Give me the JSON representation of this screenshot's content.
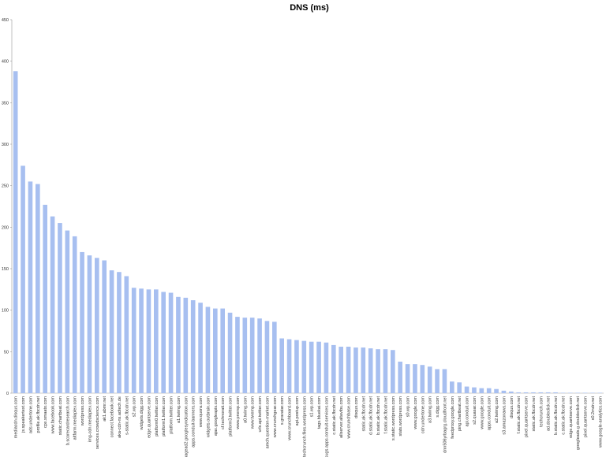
{
  "chart_data": {
    "type": "bar",
    "title": "DNS (ms)",
    "categories": [
      "mediacdn.disqus.com",
      "js.speakertext.com",
      "ads.undertone.com",
      "profile.ak.fbcdn.net",
      "cpx.smaato.com",
      "www.facebook.com",
      "static.chartbeat.com",
      "b.scorecardresearch.com",
      "altfarm.mediaplex.com",
      "wordpress.com",
      "img-cdn.mediaplex.com",
      "services.crowdscience.com",
      "ak1.abmr.net",
      "connect.facebook.net",
      "aka-cdn-ns.adtech.de",
      "s-static.ak.fbcdn.net",
      "s2.wp.com",
      "widgets.digg.com",
      "edge.quantserve.com",
      "platform0.twitter.com",
      "platform1.twitter.com",
      "platform.twitter.com",
      "a1.twimg.com",
      "pagead2.googlesyndication.com",
      "apps.conduit-banners.com",
      "www.quora.com",
      "widgets.outbrain.com",
      "ajax.googleapis.com",
      "cf.technorati.com",
      "platform3.twitter.com",
      "www.pnxrsp.com",
      "a0.twimg.com",
      "www.twemp.com",
      "urls.api.twitter.com",
      "amch.question-market.com",
      "www.crunchgear.com",
      "s.gravatar.com",
      "www.crunchboard.com",
      "api.postup.com",
      "techcrunch.files.wordpress.com",
      "s1.wp.com",
      "tags.bluekai.com",
      "sugs.apps.conduit-services.com",
      "c.static.ak.fbcdn.net",
      "allserver.altavibu.com",
      "www.crunchbase.com",
      "disqus.com",
      "static.ak.fbcdn.net",
      "d.static.ak.fbcdn.net",
      "b.static.ak.fbcdn.net",
      "f.static.ak.fbcdn.net",
      "s.static.wordpress.com",
      "stats.wordpress.com",
      "s0.wp.com",
      "www.google.com",
      "cdn.undertone.com",
      "a3.twimg.com",
      "s.digg.com",
      "dnn506yrbagrg.cloudfront.net",
      "feedproxy.google.com",
      "ping.chartbeat.net",
      "api.conduit.com",
      "s2.quasar.com",
      "www.google.com",
      "apps.conduit.com",
      "a2.twimg.com",
      "s3.amazonaws.com",
      "disqus.com",
      "f.static.ak.fbcdn.net",
      "pixel.quantserve.com",
      "static.ak.fbcdn.net",
      "techcrunch.com",
      "ad.doubleclick.net",
      "b.static.ak.fbcdn.net",
      "c.static.ak.fbcdn.net",
      "edge.quantserve.com",
      "googleads.g.doubleclick.net",
      "pixel.quantserve.com",
      "s0.2mdn.net",
      "www.google-analytics.com"
    ],
    "values": [
      388,
      274,
      255,
      252,
      227,
      213,
      205,
      196,
      189,
      170,
      166,
      163,
      160,
      148,
      146,
      141,
      127,
      126,
      125,
      125,
      122,
      121,
      116,
      115,
      112,
      109,
      104,
      102,
      102,
      97,
      92,
      91,
      91,
      90,
      87,
      86,
      66,
      65,
      64,
      63,
      62,
      62,
      61,
      58,
      56,
      56,
      55,
      55,
      54,
      53,
      53,
      52,
      38,
      35,
      35,
      34,
      32,
      29,
      29,
      14,
      13,
      8,
      7,
      6,
      6,
      5,
      3,
      2,
      1,
      1,
      1,
      1,
      1,
      1,
      0.5,
      0.5,
      0.5,
      0.5,
      0.5,
      0.5
    ],
    "color": "#a7bff0",
    "ylim": [
      0,
      450
    ],
    "yticks": [
      0,
      50,
      100,
      150,
      200,
      250,
      300,
      350,
      400,
      450
    ],
    "grid": false
  }
}
